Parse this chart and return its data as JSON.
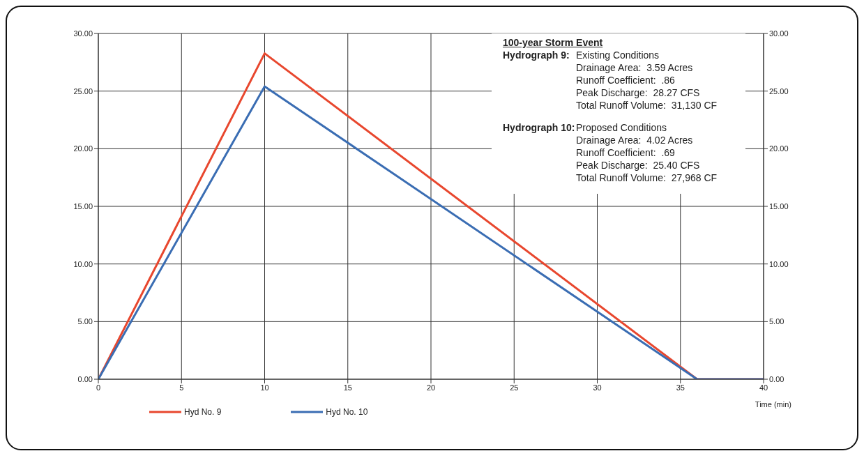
{
  "chart_data": {
    "type": "line",
    "xlabel": "Time (min)",
    "x": [
      0,
      10,
      36,
      40
    ],
    "series": [
      {
        "name": "Hyd No. 9",
        "color": "#e8472e",
        "values": [
          0,
          28.27,
          0,
          0
        ]
      },
      {
        "name": "Hyd No. 10",
        "color": "#3a6db3",
        "values": [
          0,
          25.4,
          0,
          0
        ]
      }
    ],
    "xlim": [
      0,
      40
    ],
    "xticks": [
      0,
      5,
      10,
      15,
      20,
      25,
      30,
      35,
      40
    ],
    "ylim": [
      0,
      30
    ],
    "yticks": [
      {
        "value": 0,
        "label": "0.00"
      },
      {
        "value": 5,
        "label": "5.00"
      },
      {
        "value": 10,
        "label": "10.00"
      },
      {
        "value": 15,
        "label": "15.00"
      },
      {
        "value": 20,
        "label": "20.00"
      },
      {
        "value": 25,
        "label": "25.00"
      },
      {
        "value": 30,
        "label": "30.00"
      }
    ],
    "y2lim": [
      0,
      30
    ],
    "y2ticks": [
      {
        "value": 0,
        "label": "0.00"
      },
      {
        "value": 5,
        "label": "5.00"
      },
      {
        "value": 10,
        "label": "10.00"
      },
      {
        "value": 15,
        "label": "15.00"
      },
      {
        "value": 20,
        "label": "20.00"
      },
      {
        "value": 25,
        "label": "25.00"
      },
      {
        "value": 30,
        "label": "30.00"
      }
    ],
    "grid": true,
    "legend": "bottom left",
    "marker": "none",
    "line_style": "solid",
    "annotations": [
      "100-year Storm Event",
      "Hydrograph 9:",
      "Existing Conditions",
      "Drainage Area:  3.59 Acres",
      "Runoff Coefficient:  .86",
      "Peak Discharge:  28.27 CFS",
      "Total Runoff Volume:  31,130 CF",
      "Hydrograph 10:",
      "Proposed Conditions",
      "Drainage Area:  4.02 Acres",
      "Runoff Coefficient:  .69",
      "Peak Discharge:  25.40 CFS",
      "Total Runoff Volume:  27,968 CF"
    ]
  }
}
